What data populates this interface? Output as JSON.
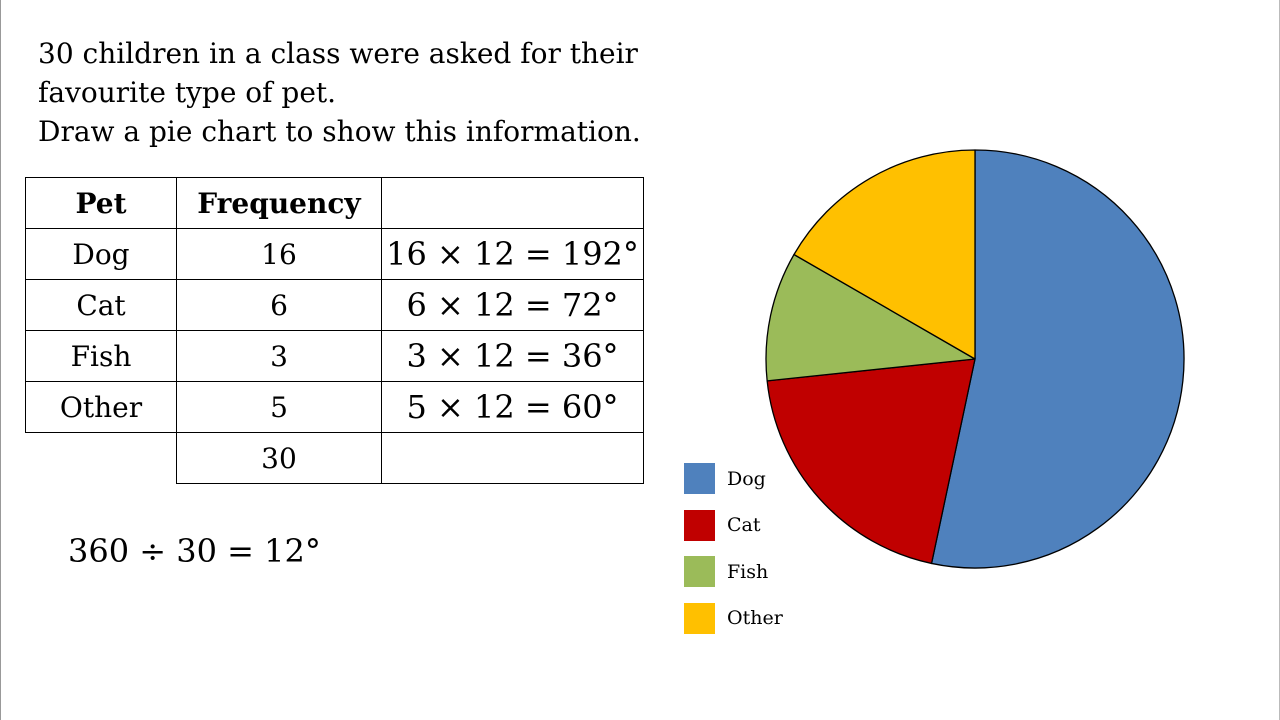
{
  "question": {
    "line1": "30 children in a class were asked for their",
    "line2": "favourite type of pet.",
    "line3": "Draw a pie chart to show this information."
  },
  "table": {
    "headers": [
      "Pet",
      "Frequency",
      ""
    ],
    "rows": [
      {
        "pet": "Dog",
        "frequency": "16",
        "angle": "16 × 12 = 192°"
      },
      {
        "pet": "Cat",
        "frequency": "6",
        "angle": "6 × 12 = 72°"
      },
      {
        "pet": "Fish",
        "frequency": "3",
        "angle": "3 × 12 = 36°"
      },
      {
        "pet": "Other",
        "frequency": "5",
        "angle": "5 × 12 = 60°"
      }
    ],
    "total": "30"
  },
  "calculation": "360 ÷ 30 = 12°",
  "colors": {
    "dog": "#4F81BD",
    "cat": "#C00000",
    "fish": "#9BBB59",
    "other": "#FFC000"
  },
  "chart_data": {
    "type": "pie",
    "categories": [
      "Dog",
      "Cat",
      "Fish",
      "Other"
    ],
    "values": [
      192,
      72,
      36,
      60
    ],
    "colors": [
      "#4F81BD",
      "#C00000",
      "#9BBB59",
      "#FFC000"
    ],
    "start_angle_deg": 0,
    "direction": "clockwise",
    "legend_position": "bottom-left"
  }
}
